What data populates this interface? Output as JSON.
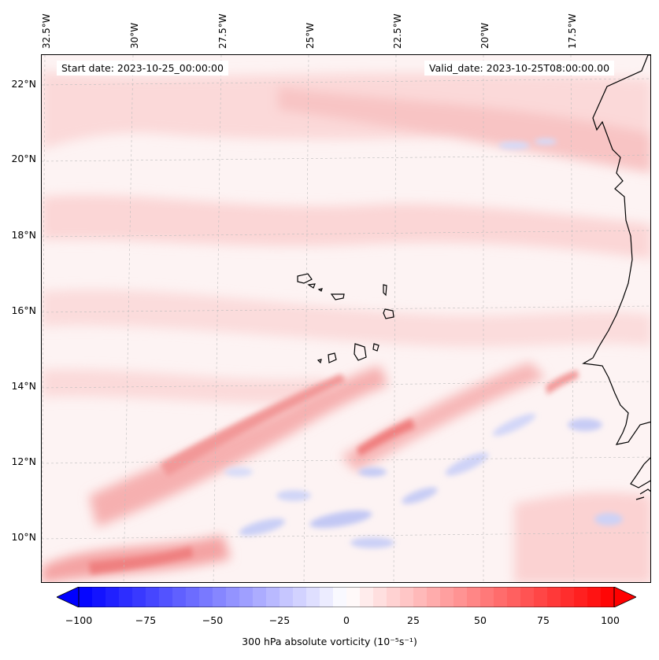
{
  "header": {
    "start_date": "Start date: 2023-10-25_00:00:00",
    "valid_date": "Valid_date: 2023-10-25T08:00:00.00"
  },
  "axes": {
    "lon_labels": [
      "32.5°W",
      "30°W",
      "27.5°W",
      "25°W",
      "22.5°W",
      "20°W",
      "17.5°W"
    ],
    "lat_labels": [
      "22°N",
      "20°N",
      "18°N",
      "16°N",
      "14°N",
      "12°N",
      "10°N"
    ]
  },
  "colorbar": {
    "ticks": [
      "−100",
      "−75",
      "−50",
      "−25",
      "0",
      "25",
      "50",
      "75",
      "100"
    ],
    "label": "300 hPa absolute vorticity (10⁻⁵s⁻¹)",
    "min": -100,
    "max": 100,
    "colors": {
      "negative_end": "#0000ff",
      "neutral": "#ffffff",
      "positive_end": "#ff0000"
    }
  }
}
